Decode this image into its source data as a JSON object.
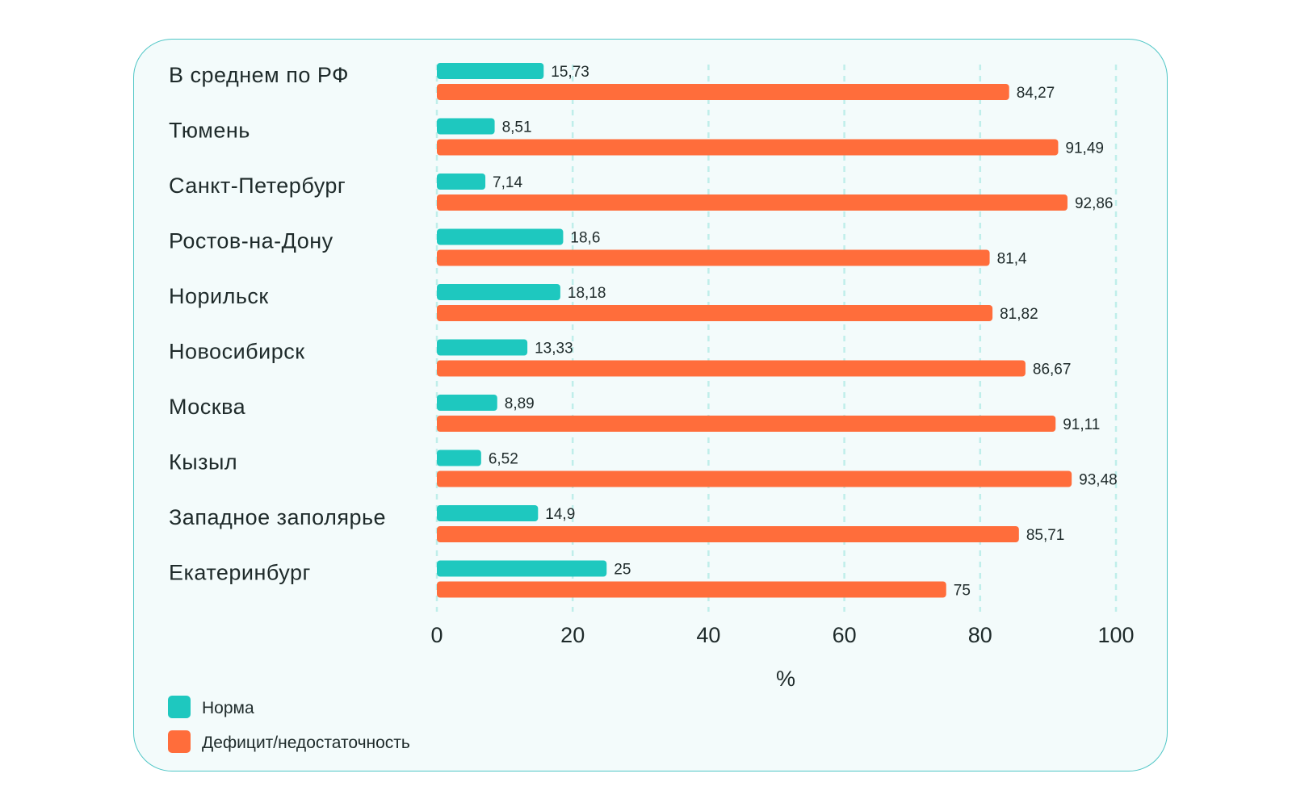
{
  "chart_data": {
    "type": "bar",
    "orientation": "horizontal",
    "categories": [
      "В среднем по РФ",
      "Тюмень",
      "Санкт-Петербург",
      "Ростов-на-Дону",
      "Норильск",
      "Новосибирск",
      "Москва",
      "Кызыл",
      "Западное заполярье",
      "Екатеринбург"
    ],
    "series": [
      {
        "name": "Норма",
        "color": "#1ec8bf",
        "values": [
          15.73,
          8.51,
          7.14,
          18.6,
          18.18,
          13.33,
          8.89,
          6.52,
          14.9,
          25
        ],
        "labels": [
          "15,73",
          "8,51",
          "7,14",
          "18,6",
          "18,18",
          "13,33",
          "8,89",
          "6,52",
          "14,9",
          "25"
        ]
      },
      {
        "name": "Дефицит/недостаточность",
        "color": "#ff6d3b",
        "values": [
          84.27,
          91.49,
          92.86,
          81.4,
          81.82,
          86.67,
          91.11,
          93.48,
          85.71,
          75
        ],
        "labels": [
          "84,27",
          "91,49",
          "92,86",
          "81,4",
          "81,82",
          "86,67",
          "91,11",
          "93,48",
          "85,71",
          "75"
        ]
      }
    ],
    "xlabel": "%",
    "xlim": [
      0,
      100
    ],
    "xticks": [
      0,
      20,
      40,
      60,
      80,
      100
    ],
    "xtick_labels": [
      "0",
      "20",
      "40",
      "60",
      "80",
      "100"
    ],
    "grid": "vertical dashed",
    "grid_color": "#bfeeea",
    "legend_position": "bottom-left"
  }
}
